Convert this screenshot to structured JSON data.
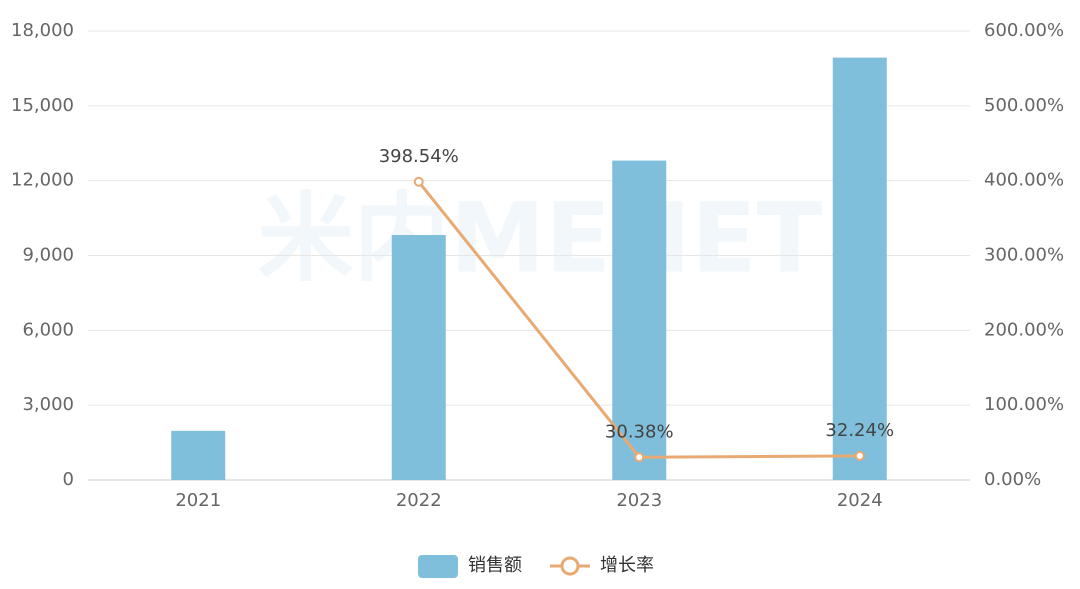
{
  "chart_data": {
    "type": "bar_line",
    "watermark": "米内MENET",
    "categories": [
      "2021",
      "2022",
      "2023",
      "2024"
    ],
    "series": [
      {
        "name": "销售额",
        "type": "bar",
        "color": "#7fbfdb",
        "values": [
          1970,
          9821,
          12805,
          16933
        ]
      },
      {
        "name": "增长率",
        "type": "line",
        "axis": "y2",
        "color": "#e8aa72",
        "values": [
          null,
          398.54,
          30.38,
          32.24
        ],
        "value_labels": [
          null,
          "398.54%",
          "30.38%",
          "32.24%"
        ]
      }
    ],
    "ylim": [
      0,
      18000
    ],
    "yticks": [
      0,
      {
        "value": 3000,
        "label": "3,000"
      },
      {
        "value": 6000,
        "label": "6,000"
      },
      {
        "value": 9000,
        "label": "9,000"
      },
      {
        "value": 12000,
        "label": "12,000"
      },
      {
        "value": 15000,
        "label": "15,000"
      },
      {
        "value": 18000,
        "label": "18,000"
      }
    ],
    "y2lim": [
      0,
      600
    ],
    "y2ticks": [
      {
        "value": 0,
        "label": "0.00%"
      },
      {
        "value": 100,
        "label": "100.00%"
      },
      {
        "value": 200,
        "label": "200.00%"
      },
      {
        "value": 300,
        "label": "300.00%"
      },
      {
        "value": 400,
        "label": "400.00%"
      },
      {
        "value": 500,
        "label": "500.00%"
      },
      {
        "value": 600,
        "label": "600.00%"
      }
    ],
    "grid": true,
    "legend": "bottom"
  }
}
